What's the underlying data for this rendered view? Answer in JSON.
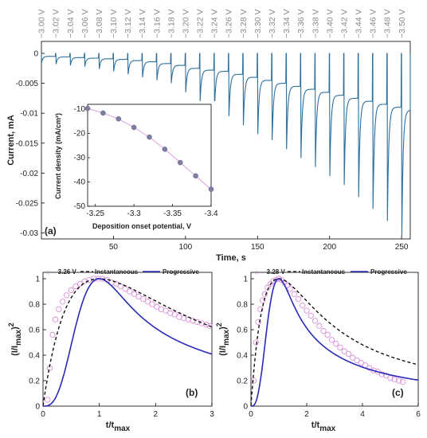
{
  "chart_data": [
    {
      "id": "a",
      "type": "line",
      "panel_label": "(a)",
      "xlabel": "Time, s",
      "ylabel": "Current, mA",
      "xlim": [
        0,
        256
      ],
      "ylim": [
        -0.031,
        0.002
      ],
      "xticks": [
        50,
        100,
        150,
        200,
        250
      ],
      "yticks": [
        0,
        -0.005,
        -0.01,
        -0.015,
        -0.02,
        -0.025,
        -0.03
      ],
      "ytick_labels": [
        "0",
        "-0.005",
        "-0.01",
        "-0.015",
        "-0.02",
        "-0.025",
        "-0.03"
      ],
      "potential_labels": [
        "−3.00 V",
        "−3.02 V",
        "−3.04 V",
        "−3.06 V",
        "−3.08 V",
        "−3.10 V",
        "−3.12 V",
        "−3.14 V",
        "−3.16 V",
        "−3.18 V",
        "−3.20 V",
        "−3.22 V",
        "−3.24 V",
        "−3.26 V",
        "−3.28 V",
        "−3.30 V",
        "−3.32 V",
        "−3.34 V",
        "−3.36 V",
        "−3.38 V",
        "−3.40 V",
        "−3.42 V",
        "−3.44 V",
        "−3.46 V",
        "−3.48 V",
        "−3.50 V"
      ],
      "series": [
        {
          "color": "#2e6f9e",
          "pulse_starts": [
            0,
            10,
            20,
            30,
            40,
            50,
            60,
            70,
            80,
            90,
            100,
            110,
            120,
            130,
            140,
            150,
            160,
            170,
            180,
            190,
            200,
            210,
            220,
            230,
            240,
            250
          ],
          "spike_minima": [
            -0.0015,
            -0.0018,
            -0.002,
            -0.0022,
            -0.0026,
            -0.003,
            -0.0035,
            -0.004,
            -0.0045,
            -0.005,
            -0.0065,
            -0.008,
            -0.009,
            -0.0105,
            -0.012,
            -0.0135,
            -0.0145,
            -0.016,
            -0.0175,
            -0.019,
            -0.0205,
            -0.022,
            -0.024,
            -0.026,
            -0.028,
            -0.0305
          ],
          "plateau_values": [
            -0.0005,
            -0.0006,
            -0.0007,
            -0.0008,
            -0.0009,
            -0.001,
            -0.0012,
            -0.0014,
            -0.0017,
            -0.002,
            -0.0025,
            -0.0028,
            -0.003,
            -0.0035,
            -0.004,
            -0.0045,
            -0.005,
            -0.0055,
            -0.006,
            -0.0065,
            -0.007,
            -0.0075,
            -0.008,
            -0.0085,
            -0.009,
            -0.0095
          ]
        }
      ],
      "inset": {
        "type": "scatter",
        "xlabel": "Deposition onset potential, V",
        "ylabel": "Current density (mA/cm²)",
        "xlim": [
          -3.24,
          -3.4
        ],
        "ylim": [
          -50,
          -8
        ],
        "xticks": [
          -3.25,
          -3.3,
          -3.35,
          -3.4
        ],
        "yticks": [
          -10,
          -20,
          -30,
          -40,
          -50
        ],
        "points": [
          {
            "x": -3.24,
            "y": -9.7
          },
          {
            "x": -3.26,
            "y": -11.6
          },
          {
            "x": -3.28,
            "y": -14.0
          },
          {
            "x": -3.3,
            "y": -17.5
          },
          {
            "x": -3.32,
            "y": -21.5
          },
          {
            "x": -3.34,
            "y": -26.5
          },
          {
            "x": -3.36,
            "y": -32.0
          },
          {
            "x": -3.38,
            "y": -37.5
          },
          {
            "x": -3.4,
            "y": -43.0
          }
        ],
        "point_color": "#7f7fa3",
        "fit_color": "#d9a0d9"
      }
    },
    {
      "id": "b",
      "type": "line",
      "panel_label": "(b)",
      "xlabel": "t/t",
      "xlabel_sub": "max",
      "ylabel": "(I/I",
      "ylabel_sub": "max",
      "ylabel_close": ")",
      "ylabel_sup": "2",
      "xlim": [
        0,
        3
      ],
      "ylim": [
        0,
        1.05
      ],
      "xticks": [
        0,
        1,
        2,
        3
      ],
      "yticks": [
        0,
        0.2,
        0.4,
        0.6,
        0.8,
        1
      ],
      "series": [
        {
          "name": "-3.26 V",
          "style": "markers",
          "color": "#d98fd9",
          "points": [
            [
              0.08,
              0.05
            ],
            [
              0.12,
              0.3
            ],
            [
              0.17,
              0.56
            ],
            [
              0.22,
              0.68
            ],
            [
              0.28,
              0.76
            ],
            [
              0.35,
              0.82
            ],
            [
              0.42,
              0.87
            ],
            [
              0.5,
              0.91
            ],
            [
              0.58,
              0.94
            ],
            [
              0.66,
              0.96
            ],
            [
              0.74,
              0.98
            ],
            [
              0.82,
              0.99
            ],
            [
              0.9,
              1.0
            ],
            [
              0.98,
              1.0
            ],
            [
              1.06,
              1.0
            ],
            [
              1.14,
              0.99
            ],
            [
              1.22,
              0.97
            ],
            [
              1.3,
              0.96
            ],
            [
              1.38,
              0.94
            ],
            [
              1.46,
              0.92
            ],
            [
              1.54,
              0.9
            ],
            [
              1.62,
              0.88
            ],
            [
              1.7,
              0.86
            ],
            [
              1.78,
              0.84
            ],
            [
              1.86,
              0.82
            ],
            [
              1.94,
              0.8
            ],
            [
              2.02,
              0.78
            ],
            [
              2.1,
              0.76
            ],
            [
              2.18,
              0.75
            ],
            [
              2.26,
              0.73
            ],
            [
              2.34,
              0.72
            ],
            [
              2.42,
              0.7
            ],
            [
              2.5,
              0.69
            ],
            [
              2.58,
              0.68
            ],
            [
              2.66,
              0.67
            ],
            [
              2.74,
              0.66
            ],
            [
              2.82,
              0.65
            ],
            [
              2.9,
              0.64
            ],
            [
              2.96,
              0.63
            ]
          ]
        },
        {
          "name": "Instantaneous",
          "style": "dashed",
          "color": "#111111",
          "model": "instantaneous"
        },
        {
          "name": "Progressive",
          "style": "solid",
          "color": "#2a2ab8",
          "model": "progressive"
        }
      ]
    },
    {
      "id": "c",
      "type": "line",
      "panel_label": "(c)",
      "xlabel": "t/t",
      "xlabel_sub": "max",
      "ylabel": "(I/I",
      "ylabel_sub": "max",
      "ylabel_close": ")",
      "ylabel_sup": "2",
      "xlim": [
        0,
        6
      ],
      "ylim": [
        0,
        1.05
      ],
      "xticks": [
        0,
        2,
        4,
        6
      ],
      "yticks": [
        0,
        0.2,
        0.4,
        0.6,
        0.8,
        1
      ],
      "series": [
        {
          "name": "-3.28 V",
          "style": "markers",
          "color": "#d98fd9",
          "points": [
            [
              0.1,
              0.2
            ],
            [
              0.18,
              0.5
            ],
            [
              0.26,
              0.66
            ],
            [
              0.34,
              0.76
            ],
            [
              0.42,
              0.83
            ],
            [
              0.5,
              0.88
            ],
            [
              0.6,
              0.93
            ],
            [
              0.7,
              0.96
            ],
            [
              0.8,
              0.98
            ],
            [
              0.9,
              0.99
            ],
            [
              1.0,
              1.0
            ],
            [
              1.1,
              0.99
            ],
            [
              1.2,
              0.97
            ],
            [
              1.3,
              0.95
            ],
            [
              1.4,
              0.92
            ],
            [
              1.55,
              0.88
            ],
            [
              1.7,
              0.84
            ],
            [
              1.85,
              0.79
            ],
            [
              2.0,
              0.75
            ],
            [
              2.15,
              0.71
            ],
            [
              2.3,
              0.67
            ],
            [
              2.45,
              0.63
            ],
            [
              2.6,
              0.59
            ],
            [
              2.75,
              0.56
            ],
            [
              2.9,
              0.52
            ],
            [
              3.05,
              0.49
            ],
            [
              3.2,
              0.46
            ],
            [
              3.35,
              0.43
            ],
            [
              3.5,
              0.41
            ],
            [
              3.65,
              0.38
            ],
            [
              3.8,
              0.36
            ],
            [
              3.95,
              0.34
            ],
            [
              4.1,
              0.32
            ],
            [
              4.25,
              0.3
            ],
            [
              4.4,
              0.28
            ],
            [
              4.55,
              0.27
            ],
            [
              4.7,
              0.25
            ],
            [
              4.85,
              0.24
            ],
            [
              5.0,
              0.22
            ],
            [
              5.15,
              0.21
            ],
            [
              5.3,
              0.2
            ],
            [
              5.45,
              0.19
            ]
          ]
        },
        {
          "name": "Instantaneous",
          "style": "dashed",
          "color": "#111111",
          "model": "instantaneous"
        },
        {
          "name": "Progressive",
          "style": "solid",
          "color": "#2a2ab8",
          "model": "progressive"
        }
      ]
    }
  ]
}
